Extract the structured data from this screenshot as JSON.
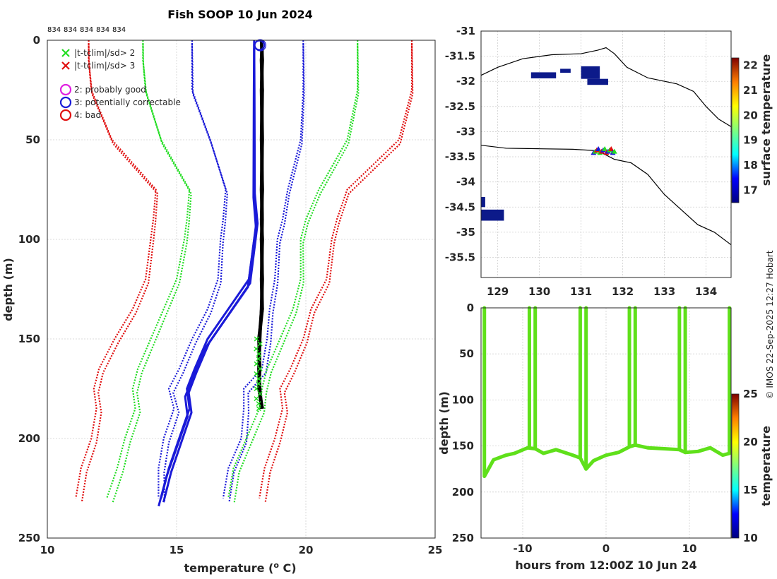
{
  "chart_data": [
    {
      "type": "line",
      "panel": "profile",
      "title": "Fish SOOP 10 Jun 2024",
      "xlabel": "temperature (",
      "xlabel_sup": "o",
      "xlabel_end": " C)",
      "ylabel": "depth (m)",
      "xlim": [
        10,
        25
      ],
      "ylim": [
        0,
        250
      ],
      "xticks": [
        "10",
        "15",
        "20",
        "25"
      ],
      "yticks": [
        "0",
        "50",
        "100",
        "150",
        "200",
        "250"
      ],
      "station_labels": [
        "834",
        "834",
        "834",
        "834",
        "834"
      ],
      "legend": [
        {
          "symbol": "x",
          "color": "#22dd22",
          "label": "|t-tclim|/sd> 2"
        },
        {
          "symbol": "x",
          "color": "#e01010",
          "label": "|t-tclim|/sd> 3"
        },
        {
          "symbol": "o",
          "color": "#e020e0",
          "label": "2: probably good"
        },
        {
          "symbol": "o",
          "color": "#1a1ad8",
          "label": "3: potentially correctable"
        },
        {
          "symbol": "o",
          "color": "#e01010",
          "label": "4: bad"
        }
      ],
      "colors": {
        "clim_mean": "#1a1ad8",
        "sd1": "#1a1ad8",
        "sd2": "#22dd22",
        "sd3": "#e01010",
        "profile": "#000000"
      },
      "depths": [
        0,
        10,
        25,
        50,
        75,
        90,
        100,
        120,
        135,
        150,
        165,
        175,
        185,
        200,
        215,
        230
      ],
      "series": [
        {
          "name": "climatology mean",
          "style": "solid",
          "values": [
            18.0,
            18.0,
            18.0,
            18.0,
            18.0,
            18.1,
            18.0,
            17.8,
            17.0,
            16.2,
            15.7,
            15.4,
            15.5,
            15.1,
            14.7,
            14.4
          ]
        },
        {
          "name": "mean-1sd",
          "style": "dotted",
          "values": [
            15.6,
            15.6,
            15.6,
            16.3,
            16.9,
            16.8,
            16.7,
            16.6,
            16.2,
            15.6,
            15.1,
            14.7,
            14.9,
            14.5,
            14.3,
            14.3
          ]
        },
        {
          "name": "mean+1sd",
          "style": "dotted",
          "values": [
            19.9,
            19.9,
            19.9,
            19.8,
            19.3,
            19.1,
            18.9,
            18.8,
            18.6,
            18.5,
            18.3,
            17.6,
            17.6,
            17.5,
            17.0,
            16.8
          ]
        },
        {
          "name": "mean-2sd",
          "style": "dotted",
          "values": [
            13.7,
            13.7,
            13.8,
            14.4,
            15.5,
            15.4,
            15.3,
            15.0,
            14.5,
            14.0,
            13.5,
            13.3,
            13.4,
            13.0,
            12.7,
            12.3
          ]
        },
        {
          "name": "mean+2sd",
          "style": "dotted",
          "values": [
            22.0,
            22.0,
            22.0,
            21.6,
            20.5,
            20.0,
            19.8,
            19.8,
            19.5,
            19.0,
            18.5,
            18.3,
            18.2,
            17.7,
            17.2,
            17.0
          ]
        },
        {
          "name": "mean-3sd",
          "style": "dotted",
          "values": [
            11.6,
            11.6,
            11.7,
            12.5,
            14.2,
            14.1,
            14.0,
            13.8,
            13.3,
            12.6,
            12.0,
            11.8,
            11.9,
            11.7,
            11.3,
            11.1
          ]
        },
        {
          "name": "mean+3sd",
          "style": "dotted",
          "values": [
            24.1,
            24.1,
            24.1,
            23.6,
            21.6,
            21.2,
            21.0,
            20.8,
            20.2,
            19.9,
            19.4,
            19.0,
            19.1,
            18.8,
            18.4,
            18.2
          ]
        },
        {
          "name": "observed profiles",
          "style": "solid",
          "values": [
            18.3,
            18.3,
            18.3,
            18.3,
            18.3,
            18.3,
            18.3,
            18.3,
            18.3,
            18.2,
            18.2,
            18.2,
            18.3
          ]
        }
      ]
    },
    {
      "type": "scatter",
      "panel": "map",
      "colorbar_label": "surface temperature",
      "colorbar_ticks": [
        "22",
        "21",
        "20",
        "19",
        "18",
        "17"
      ],
      "colorbar_range": [
        16.5,
        22.3
      ],
      "xlim": [
        128.6,
        134.6
      ],
      "ylim": [
        -35.9,
        -31.0
      ],
      "xticks": [
        "129",
        "130",
        "131",
        "132",
        "133",
        "134"
      ],
      "yticks": [
        "-31",
        "-31.5",
        "-32",
        "-32.5",
        "-33",
        "-33.5",
        "-34",
        "-34.5",
        "-35",
        "-35.5"
      ],
      "cluster_lon": [
        131.3,
        131.8
      ],
      "cluster_lat": [
        -33.42,
        -33.52
      ]
    },
    {
      "type": "scatter",
      "panel": "time-depth",
      "xlabel": "hours from 12:00Z 10 Jun 24",
      "ylabel": "depth (m)",
      "xlim": [
        -15,
        15
      ],
      "ylim": [
        0,
        250
      ],
      "xticks": [
        "-10",
        "0",
        "10"
      ],
      "yticks": [
        "0",
        "50",
        "100",
        "150",
        "200",
        "250"
      ],
      "colorbar_label": "temperature",
      "colorbar_ticks": [
        "25",
        "20",
        "15",
        "10"
      ],
      "colorbar_range": [
        10,
        25
      ],
      "color": "#5fe01a",
      "profile_times": [
        -14.6,
        -9.2,
        -8.5,
        -3.1,
        -2.4,
        2.8,
        3.5,
        8.8,
        9.5,
        14.8
      ],
      "bottom_times": [
        -14.6,
        -13.5,
        -12,
        -11,
        -9.4,
        -8.5,
        -7.5,
        -6,
        -4,
        -3.1,
        -2.4,
        -1.5,
        0,
        1.5,
        2.8,
        3.5,
        5,
        7,
        8.8,
        9.5,
        11,
        12.5,
        14,
        14.8
      ],
      "bottom_depths": [
        183,
        165,
        160,
        158,
        152,
        153,
        158,
        154,
        160,
        163,
        175,
        166,
        160,
        157,
        151,
        149,
        152,
        153,
        154,
        157,
        156,
        152,
        160,
        158
      ]
    }
  ],
  "credit": "© IMOS 22-Sep-2025 12:27 Hobart"
}
